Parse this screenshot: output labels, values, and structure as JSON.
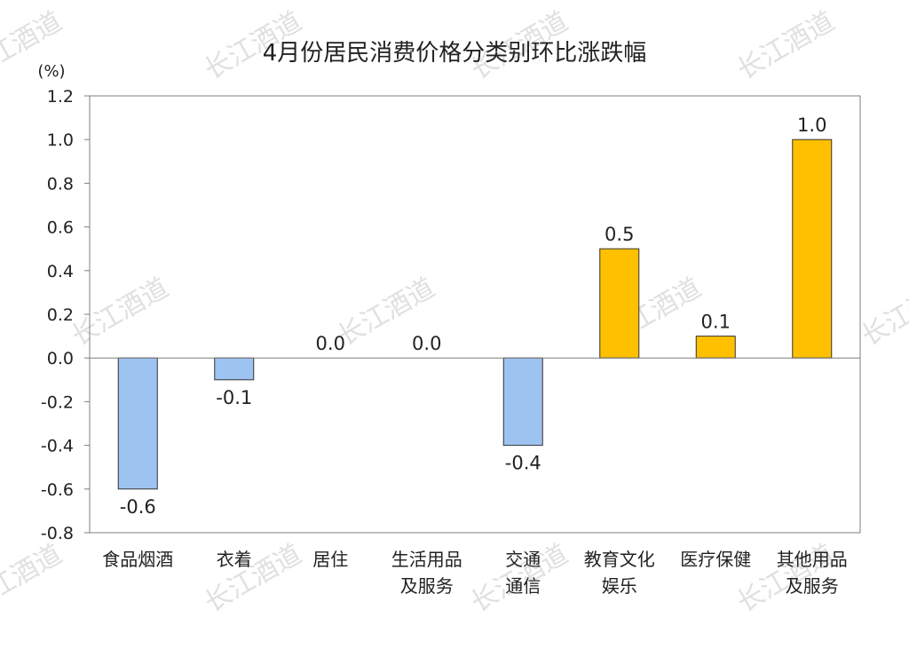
{
  "watermark": "长江酒道",
  "chart_data": {
    "type": "bar",
    "title": "4月份居民消费价格分类别环比涨跌幅",
    "unit": "(%)",
    "categories": [
      [
        "食品烟酒"
      ],
      [
        "衣着"
      ],
      [
        "居住"
      ],
      [
        "生活用品",
        "及服务"
      ],
      [
        "交通",
        "通信"
      ],
      [
        "教育文化",
        "娱乐"
      ],
      [
        "医疗保健"
      ],
      [
        "其他用品",
        "及服务"
      ]
    ],
    "values": [
      -0.6,
      -0.1,
      0.0,
      0.0,
      -0.4,
      0.5,
      0.1,
      1.0
    ],
    "data_labels": [
      "-0.6",
      "-0.1",
      "0.0",
      "0.0",
      "-0.4",
      "0.5",
      "0.1",
      "1.0"
    ],
    "ylim": [
      -0.8,
      1.2
    ],
    "yticks": [
      "1.2",
      "1.0",
      "0.8",
      "0.6",
      "0.4",
      "0.2",
      "0.0",
      "-0.2",
      "-0.4",
      "-0.6",
      "-0.8"
    ],
    "ytick_values": [
      1.2,
      1.0,
      0.8,
      0.6,
      0.4,
      0.2,
      0.0,
      -0.2,
      -0.4,
      -0.6,
      -0.8
    ],
    "colors": {
      "positive": "#FFC000",
      "negative": "#9DC3F0",
      "edge": "#333333",
      "axis": "#7f7f7f"
    },
    "grid": false,
    "legend": "none"
  }
}
